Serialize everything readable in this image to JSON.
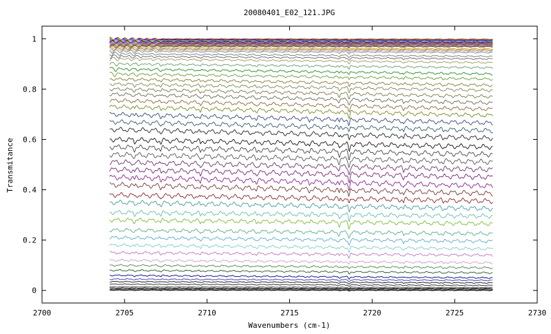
{
  "chart_data": {
    "type": "line",
    "title": "20080401_E02_121.JPG",
    "xlabel": "Wavenumbers (cm-1)",
    "ylabel": "Transmitance",
    "xlim": [
      2700,
      2730
    ],
    "ylim": [
      -0.05,
      1.05
    ],
    "xticks": [
      2700,
      2705,
      2710,
      2715,
      2720,
      2725,
      2730
    ],
    "xtick_labels": [
      "2700",
      "2705",
      "2710",
      "2715",
      "2720",
      "2725",
      "2730"
    ],
    "yticks": [
      0,
      0.2,
      0.4,
      0.6,
      0.8,
      1
    ],
    "ytick_labels": [
      "0",
      "0.2",
      "0.4",
      "0.6",
      "0.8",
      "1"
    ],
    "grid": false,
    "legend": "none",
    "x_range_of_data": [
      2704.1,
      2727.3
    ],
    "series_note_visible": false,
    "series_start_levels": [
      1.0,
      0.998,
      0.996,
      0.994,
      0.992,
      0.99,
      0.988,
      0.986,
      0.984,
      0.982,
      0.98,
      0.978,
      0.976,
      0.974,
      0.972,
      0.97,
      0.965,
      0.96,
      0.955,
      0.95,
      0.94,
      0.93,
      0.92,
      0.9,
      0.88,
      0.86,
      0.84,
      0.82,
      0.8,
      0.78,
      0.755,
      0.73,
      0.7,
      0.67,
      0.64,
      0.6,
      0.57,
      0.54,
      0.51,
      0.48,
      0.45,
      0.42,
      0.38,
      0.35,
      0.31,
      0.28,
      0.24,
      0.21,
      0.18,
      0.15,
      0.12,
      0.1,
      0.08,
      0.06,
      0.045,
      0.035,
      0.025,
      0.015,
      0.01,
      0.006,
      0.003,
      0.001
    ],
    "series_end_levels": [
      0.998,
      0.996,
      0.994,
      0.992,
      0.99,
      0.988,
      0.986,
      0.984,
      0.982,
      0.98,
      0.978,
      0.976,
      0.974,
      0.972,
      0.97,
      0.968,
      0.96,
      0.955,
      0.95,
      0.945,
      0.93,
      0.92,
      0.905,
      0.885,
      0.86,
      0.84,
      0.815,
      0.795,
      0.77,
      0.745,
      0.72,
      0.695,
      0.665,
      0.635,
      0.605,
      0.57,
      0.54,
      0.51,
      0.48,
      0.45,
      0.415,
      0.385,
      0.355,
      0.325,
      0.295,
      0.265,
      0.225,
      0.195,
      0.165,
      0.14,
      0.11,
      0.09,
      0.07,
      0.05,
      0.04,
      0.03,
      0.02,
      0.012,
      0.008,
      0.005,
      0.002,
      0.0
    ],
    "series_colors": [
      "#ff0000",
      "#00aa00",
      "#0000ff",
      "#ff00ff",
      "#00cccc",
      "#999900",
      "#000000",
      "#ff8800",
      "#8800ff",
      "#00aa88",
      "#cc0066",
      "#6666ff",
      "#ff6666",
      "#33aa33",
      "#aa5500",
      "#555555",
      "#cc9900",
      "#996633",
      "#aaaaaa",
      "#888888",
      "#777777",
      "#666666",
      "#999966",
      "#669966",
      "#228822",
      "#669933",
      "#887733",
      "#778855",
      "#777744",
      "#666655",
      "#886633",
      "#778822",
      "#334477",
      "#335566",
      "#222222",
      "#111111",
      "#444444",
      "#555555",
      "#663366",
      "#772277",
      "#882288",
      "#773333",
      "#882222",
      "#449999",
      "#66bbaa",
      "#77bb33",
      "#55aa88",
      "#55aacc",
      "#77cccc",
      "#bb77bb",
      "#cc99cc",
      "#448844",
      "#225522",
      "#000088",
      "#3333aa",
      "#111111",
      "#222222",
      "#555555",
      "#000000",
      "#333333",
      "#444444",
      "#000000"
    ]
  }
}
